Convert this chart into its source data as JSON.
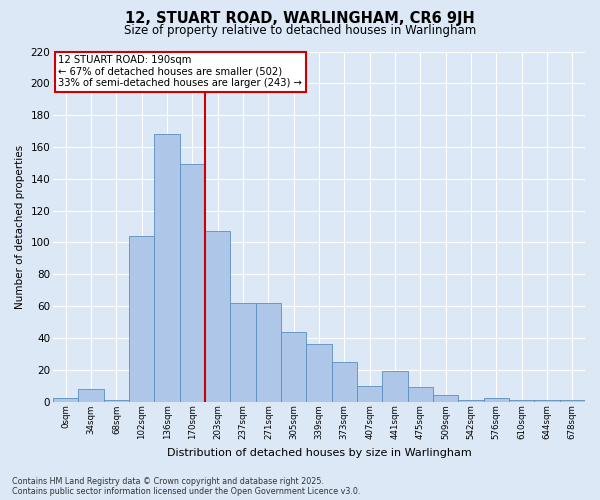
{
  "title": "12, STUART ROAD, WARLINGHAM, CR6 9JH",
  "subtitle": "Size of property relative to detached houses in Warlingham",
  "xlabel": "Distribution of detached houses by size in Warlingham",
  "ylabel": "Number of detached properties",
  "bar_color": "#aec6e8",
  "bar_edge_color": "#5a8fc0",
  "background_color": "#dce8f5",
  "grid_color": "#ffffff",
  "bins": [
    "0sqm",
    "34sqm",
    "68sqm",
    "102sqm",
    "136sqm",
    "170sqm",
    "203sqm",
    "237sqm",
    "271sqm",
    "305sqm",
    "339sqm",
    "373sqm",
    "407sqm",
    "441sqm",
    "475sqm",
    "509sqm",
    "542sqm",
    "576sqm",
    "610sqm",
    "644sqm",
    "678sqm"
  ],
  "values": [
    2,
    8,
    1,
    104,
    168,
    149,
    107,
    62,
    62,
    44,
    36,
    25,
    10,
    19,
    9,
    4,
    1,
    2,
    1,
    1,
    1
  ],
  "ylim": [
    0,
    220
  ],
  "yticks": [
    0,
    20,
    40,
    60,
    80,
    100,
    120,
    140,
    160,
    180,
    200,
    220
  ],
  "vline_x": 6.0,
  "vline_color": "#cc0000",
  "annotation_title": "12 STUART ROAD: 190sqm",
  "annotation_line1": "← 67% of detached houses are smaller (502)",
  "annotation_line2": "33% of semi-detached houses are larger (243) →",
  "annotation_box_color": "#ffffff",
  "annotation_box_edge": "#cc0000",
  "footer1": "Contains HM Land Registry data © Crown copyright and database right 2025.",
  "footer2": "Contains public sector information licensed under the Open Government Licence v3.0."
}
